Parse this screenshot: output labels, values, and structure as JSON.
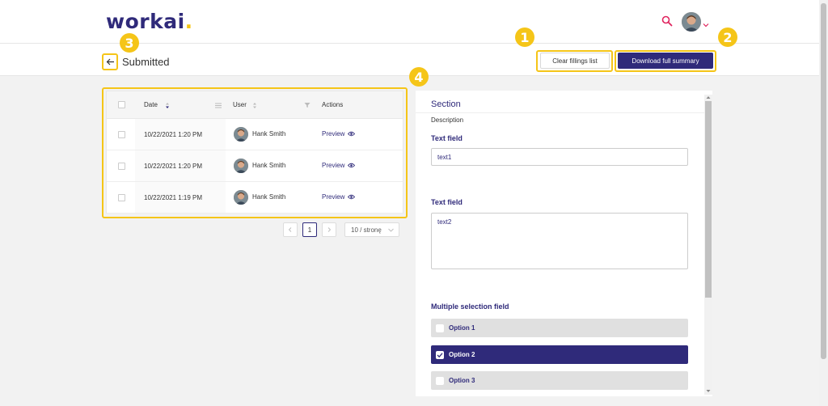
{
  "header": {
    "logo_text": "workai",
    "logo_dot": ".",
    "search_icon": "search-icon",
    "avatar_icon": "user-avatar",
    "chevron_icon": "chevron-down-icon"
  },
  "subheader": {
    "back_icon": "arrow-left-icon",
    "title": "Submitted",
    "clear_label": "Clear fillings list",
    "download_label": "Download full summary"
  },
  "annotations": {
    "badge1": "1",
    "badge2": "2",
    "badge3": "3",
    "badge4": "4"
  },
  "table": {
    "columns": [
      "Date",
      "User",
      "Actions"
    ],
    "rows": [
      {
        "date": "10/22/2021 1:20 PM",
        "user": "Hank Smith",
        "action": "Preview"
      },
      {
        "date": "10/22/2021 1:20 PM",
        "user": "Hank Smith",
        "action": "Preview"
      },
      {
        "date": "10/22/2021 1:19 PM",
        "user": "Hank Smith",
        "action": "Preview"
      }
    ]
  },
  "pagination": {
    "current_page": "1",
    "page_size": "10 / stronę"
  },
  "panel": {
    "section_title": "Section",
    "description": "Description",
    "field1_label": "Text field",
    "field1_value": "text1",
    "field2_label": "Text field",
    "field2_value": "text2",
    "multi_label": "Multiple selection field",
    "options": [
      {
        "label": "Option 1",
        "checked": false
      },
      {
        "label": "Option 2",
        "checked": true
      },
      {
        "label": "Option 3",
        "checked": false
      }
    ]
  },
  "colors": {
    "brand": "#2f2a7a",
    "highlight": "#f5c518",
    "accent_search": "#e0245e"
  }
}
